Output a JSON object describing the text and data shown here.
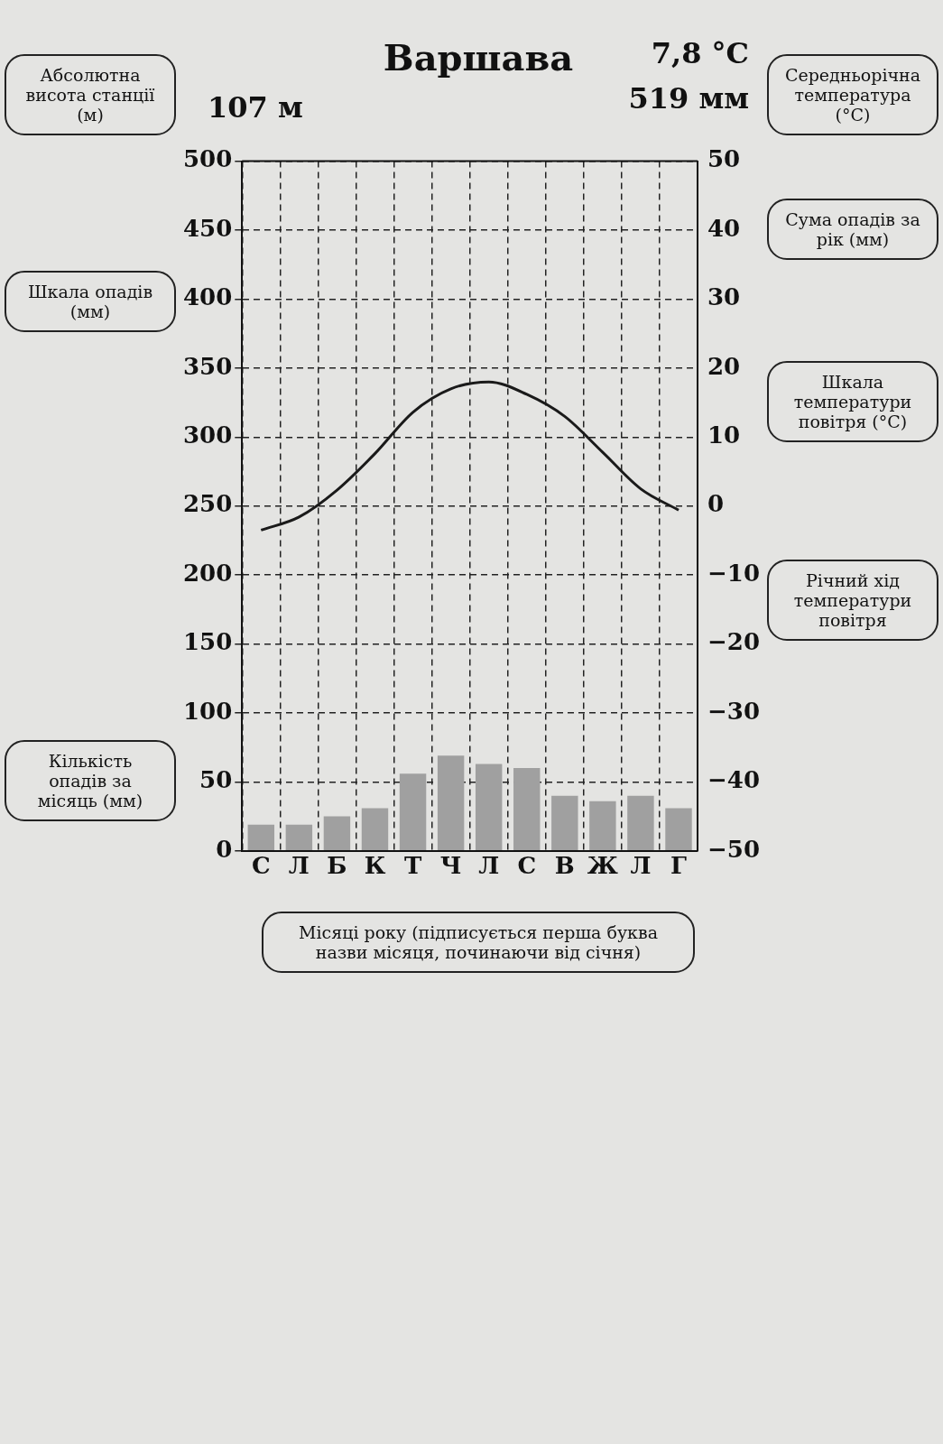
{
  "chart_data": {
    "type": "bar",
    "title": "Варшава",
    "categories": [
      "С",
      "Л",
      "Б",
      "К",
      "Т",
      "Ч",
      "Л",
      "С",
      "В",
      "Ж",
      "Л",
      "Г"
    ],
    "series": [
      {
        "color": "#a0a0a0",
        "values": [
          19,
          19,
          25,
          31,
          56,
          69,
          63,
          60,
          40,
          36,
          40,
          31
        ]
      },
      {
        "type": "line",
        "axis": "y2",
        "color": "#1a1a1a",
        "values": [
          -3.5,
          -1.6,
          2.3,
          7.6,
          13.6,
          17,
          18,
          16.2,
          13,
          7.8,
          2.5,
          -0.6
        ]
      }
    ],
    "ylim": [
      0,
      500
    ],
    "yticks": [
      0,
      50,
      100,
      150,
      200,
      250,
      300,
      350,
      400,
      450,
      500
    ],
    "y2lim": [
      -50,
      50
    ],
    "y2ticks": [
      -50,
      -40,
      -30,
      -20,
      -10,
      0,
      10,
      20,
      30,
      40,
      50
    ],
    "grid": true,
    "line_style": "solid",
    "marker": "none",
    "legend": false,
    "annotations": [
      "107 м",
      "7,8 °C",
      "519 мм",
      "Абсолютна висота станції (м)",
      "Шкала опадів (мм)",
      "Кількість опадів за місяць (мм)",
      "Середньорічна температура (°C)",
      "Сума опадів за рік (мм)",
      "Шкала температури повітря (°C)",
      "Річний хід температури повітря",
      "Місяці року (підписується перша буква назви місяця, починаючи від січня)"
    ]
  }
}
